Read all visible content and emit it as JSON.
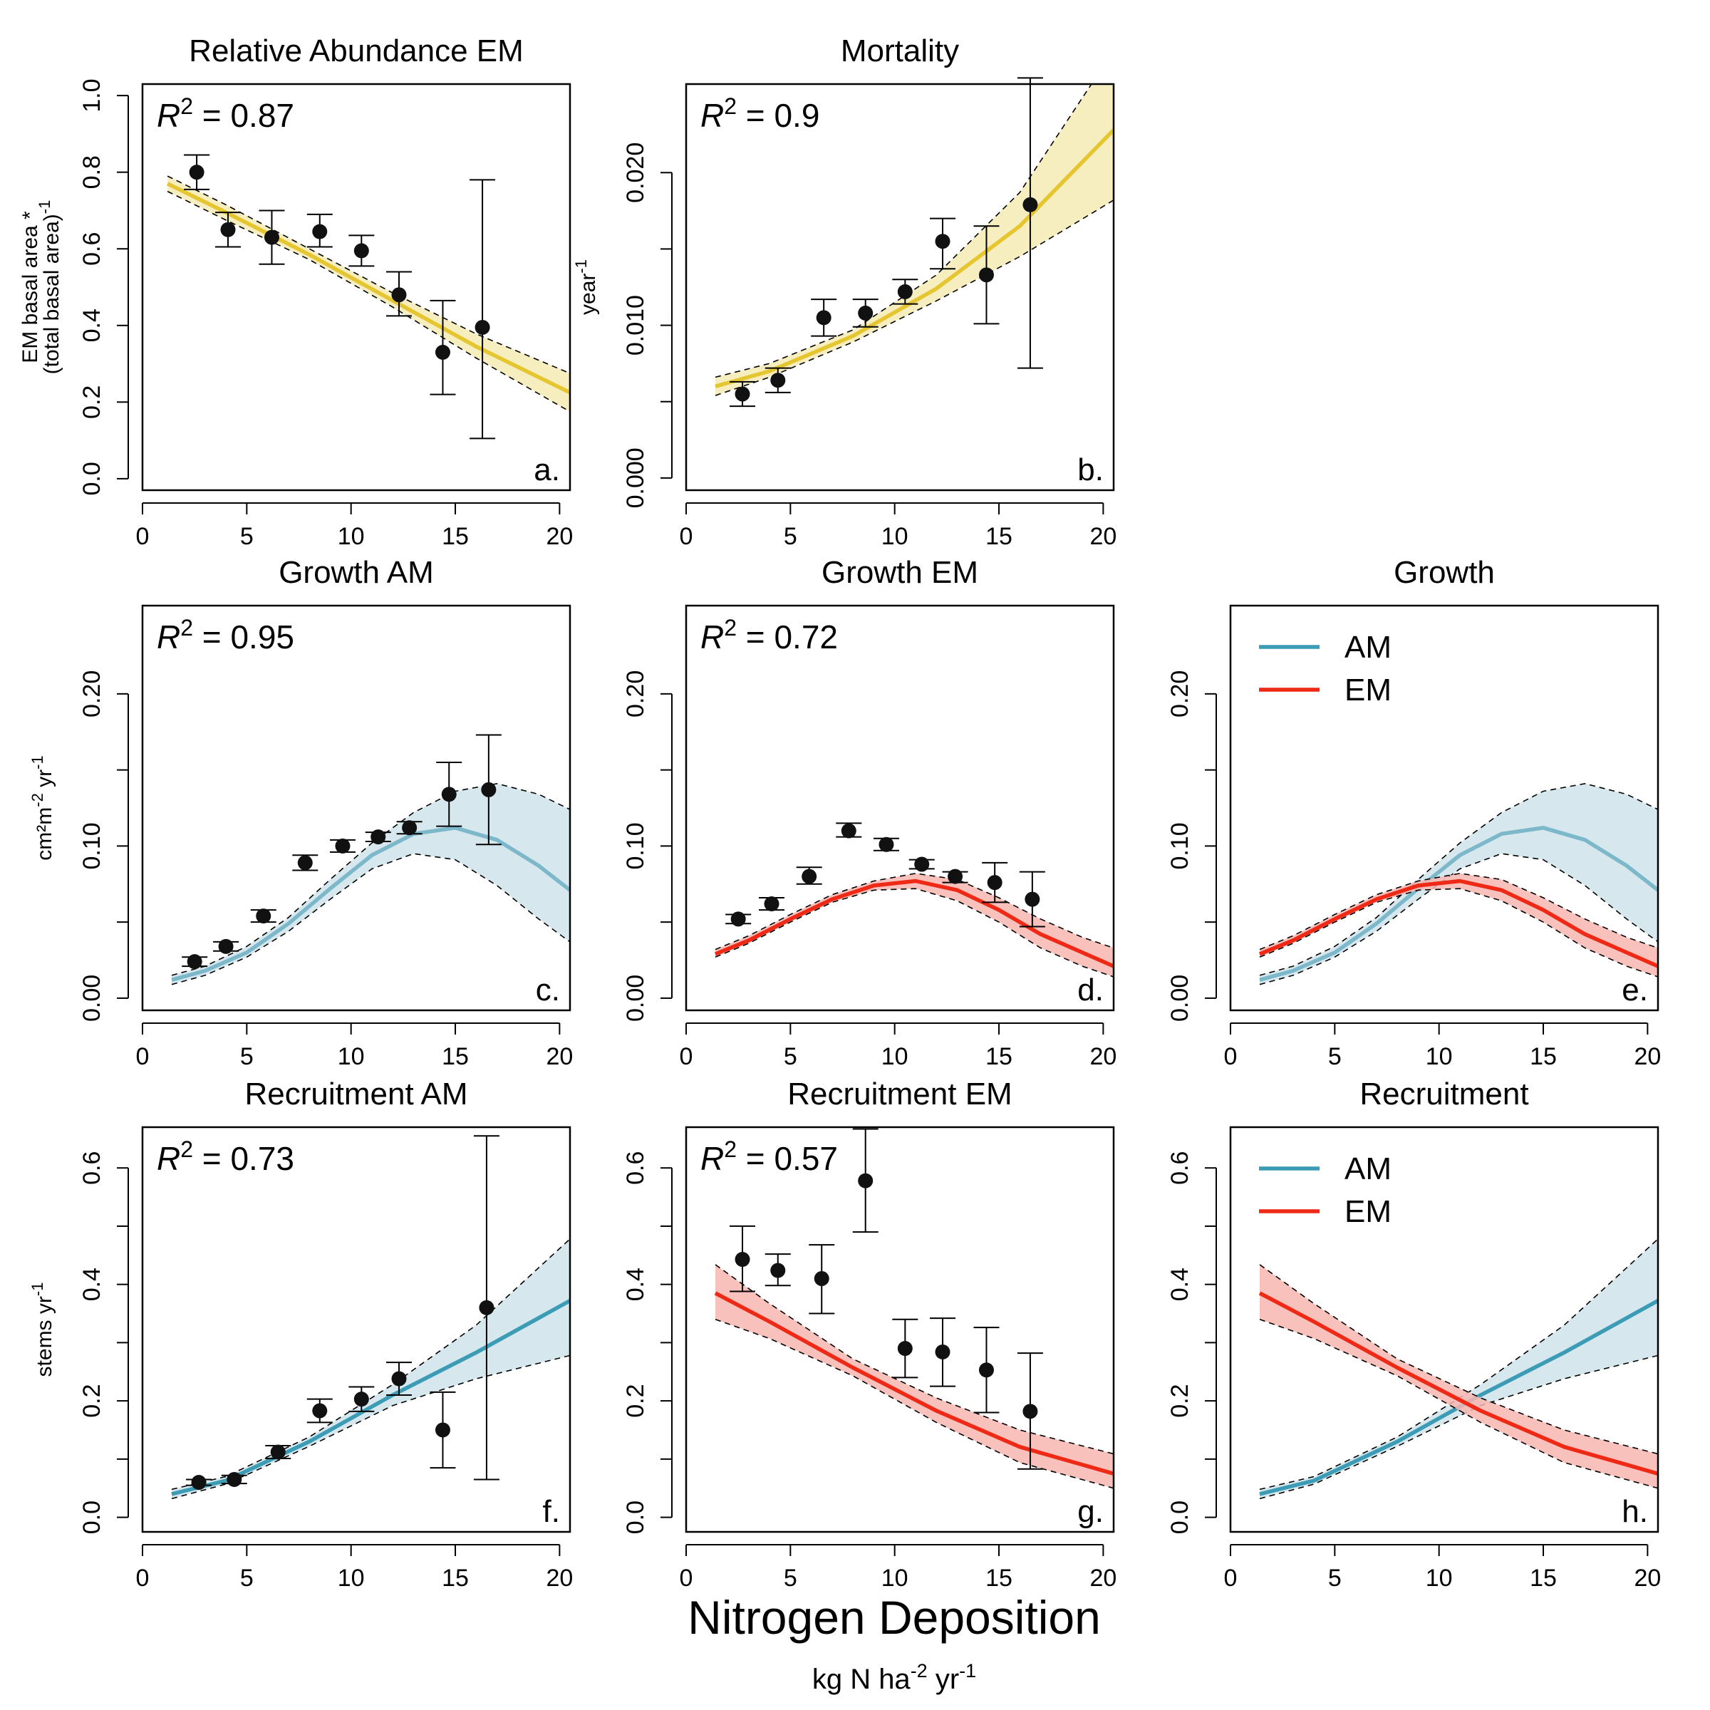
{
  "figure": {
    "xlabel": "Nitrogen Deposition",
    "xunit_pre": "kg N ha",
    "xunit_exp1": "-2",
    "xunit_mid": " yr",
    "xunit_exp2": "-1"
  },
  "colors": {
    "yellow": "#E5C630",
    "yellow_fill": "#F5EBB3",
    "blue": "#3C9BB5",
    "blue_light": "#7DB8CA",
    "blue_fill": "#CFE4EB",
    "red": "#EE2A17",
    "red_fill": "#F8B6B0"
  },
  "chart_data": [
    {
      "id": "a",
      "panel_label": "a.",
      "title": "Relative Abundance EM",
      "type": "scatter",
      "r2": "0.87",
      "ylabel": [
        "EM basal area *",
        "(total basal area)"
      ],
      "ylabel_exp": "-1",
      "xlim": [
        0,
        20.5
      ],
      "xticks": [
        "0",
        "5",
        "10",
        "15",
        "20"
      ],
      "ylim": [
        -0.03,
        1.03
      ],
      "yticks": [
        "0.0",
        "0.2",
        "0.4",
        "0.6",
        "0.8",
        "1.0"
      ],
      "points": [
        {
          "x": 2.6,
          "y": 0.8,
          "lo": 0.755,
          "hi": 0.845
        },
        {
          "x": 4.1,
          "y": 0.65,
          "lo": 0.605,
          "hi": 0.695
        },
        {
          "x": 6.2,
          "y": 0.63,
          "lo": 0.56,
          "hi": 0.7
        },
        {
          "x": 8.5,
          "y": 0.645,
          "lo": 0.605,
          "hi": 0.69
        },
        {
          "x": 10.5,
          "y": 0.595,
          "lo": 0.555,
          "hi": 0.635
        },
        {
          "x": 12.3,
          "y": 0.48,
          "lo": 0.425,
          "hi": 0.54
        },
        {
          "x": 14.4,
          "y": 0.33,
          "lo": 0.22,
          "hi": 0.465
        },
        {
          "x": 16.3,
          "y": 0.395,
          "lo": 0.105,
          "hi": 0.78
        }
      ],
      "fits": [
        {
          "name": "",
          "color": "yellow",
          "x": [
            1.2,
            4,
            8,
            12,
            16,
            20.5
          ],
          "y": [
            0.77,
            0.695,
            0.585,
            0.465,
            0.345,
            0.225
          ],
          "lo": [
            0.75,
            0.675,
            0.572,
            0.448,
            0.315,
            0.175
          ],
          "hi": [
            0.79,
            0.715,
            0.6,
            0.485,
            0.378,
            0.275
          ]
        }
      ],
      "legend": []
    },
    {
      "id": "b",
      "panel_label": "b.",
      "title": "Mortality",
      "type": "scatter",
      "r2": "0.9",
      "ylabel": [
        "year"
      ],
      "ylabel_exp": "-1",
      "xlim": [
        0,
        20.5
      ],
      "xticks": [
        "0",
        "5",
        "10",
        "15",
        "20"
      ],
      "ylim": [
        -0.0008,
        0.0258
      ],
      "yticks": [
        "0.000",
        "0.010",
        "0.020"
      ],
      "yticks_all": [
        0.0,
        0.005,
        0.01,
        0.015,
        0.02
      ],
      "points": [
        {
          "x": 2.7,
          "y": 0.0055,
          "lo": 0.0047,
          "hi": 0.0063
        },
        {
          "x": 4.4,
          "y": 0.0064,
          "lo": 0.0056,
          "hi": 0.0072
        },
        {
          "x": 6.6,
          "y": 0.0105,
          "lo": 0.0093,
          "hi": 0.0117
        },
        {
          "x": 8.6,
          "y": 0.0108,
          "lo": 0.0099,
          "hi": 0.0117
        },
        {
          "x": 10.5,
          "y": 0.0122,
          "lo": 0.0114,
          "hi": 0.013
        },
        {
          "x": 12.3,
          "y": 0.0155,
          "lo": 0.0137,
          "hi": 0.017
        },
        {
          "x": 14.4,
          "y": 0.0133,
          "lo": 0.0101,
          "hi": 0.0165
        },
        {
          "x": 16.5,
          "y": 0.0179,
          "lo": 0.0072,
          "hi": 0.0262
        }
      ],
      "fits": [
        {
          "name": "",
          "color": "yellow",
          "x": [
            1.4,
            4,
            8,
            12,
            16,
            20.5
          ],
          "y": [
            0.006,
            0.007,
            0.0093,
            0.0124,
            0.0165,
            0.0228
          ],
          "lo": [
            0.0054,
            0.0066,
            0.0089,
            0.0116,
            0.0145,
            0.0182
          ],
          "hi": [
            0.0066,
            0.0075,
            0.0097,
            0.0133,
            0.0187,
            0.028
          ]
        }
      ],
      "legend": []
    },
    {
      "id": "c",
      "panel_label": "c.",
      "title": "Growth AM",
      "type": "scatter",
      "r2": "0.95",
      "ylabel": [
        "cm²m",
        "-2",
        "yr",
        "-1"
      ],
      "ylabel_style": "growth",
      "xlim": [
        0,
        20.5
      ],
      "xticks": [
        "0",
        "5",
        "10",
        "15",
        "20"
      ],
      "ylim": [
        -0.008,
        0.258
      ],
      "yticks": [
        "0.00",
        "0.10",
        "0.20"
      ],
      "yticks_all": [
        0.0,
        0.05,
        0.1,
        0.15,
        0.2
      ],
      "points": [
        {
          "x": 2.5,
          "y": 0.024,
          "lo": 0.021,
          "hi": 0.027
        },
        {
          "x": 4.0,
          "y": 0.034,
          "lo": 0.031,
          "hi": 0.037
        },
        {
          "x": 5.8,
          "y": 0.054,
          "lo": 0.05,
          "hi": 0.058
        },
        {
          "x": 7.8,
          "y": 0.089,
          "lo": 0.084,
          "hi": 0.094
        },
        {
          "x": 9.6,
          "y": 0.1,
          "lo": 0.096,
          "hi": 0.104
        },
        {
          "x": 11.3,
          "y": 0.106,
          "lo": 0.103,
          "hi": 0.109
        },
        {
          "x": 12.8,
          "y": 0.112,
          "lo": 0.108,
          "hi": 0.116
        },
        {
          "x": 14.7,
          "y": 0.134,
          "lo": 0.113,
          "hi": 0.155
        },
        {
          "x": 16.6,
          "y": 0.137,
          "lo": 0.101,
          "hi": 0.173
        }
      ],
      "fits": [
        {
          "name": "",
          "color": "blue_light",
          "x": [
            1.4,
            3,
            5,
            7,
            9,
            11,
            13,
            15,
            17,
            19,
            20.5
          ],
          "y": [
            0.012,
            0.018,
            0.03,
            0.049,
            0.072,
            0.094,
            0.108,
            0.112,
            0.104,
            0.087,
            0.071
          ],
          "lo": [
            0.009,
            0.015,
            0.027,
            0.044,
            0.065,
            0.085,
            0.095,
            0.091,
            0.074,
            0.052,
            0.037
          ],
          "hi": [
            0.015,
            0.021,
            0.034,
            0.053,
            0.078,
            0.102,
            0.122,
            0.136,
            0.141,
            0.134,
            0.124
          ]
        }
      ],
      "legend": []
    },
    {
      "id": "d",
      "panel_label": "d.",
      "title": "Growth EM",
      "type": "scatter",
      "r2": "0.72",
      "ylabel": [],
      "ylabel_style": "none",
      "xlim": [
        0,
        20.5
      ],
      "xticks": [
        "0",
        "5",
        "10",
        "15",
        "20"
      ],
      "ylim": [
        -0.008,
        0.258
      ],
      "yticks": [
        "0.00",
        "0.10",
        "0.20"
      ],
      "yticks_all": [
        0.0,
        0.05,
        0.1,
        0.15,
        0.2
      ],
      "points": [
        {
          "x": 2.5,
          "y": 0.052,
          "lo": 0.049,
          "hi": 0.055
        },
        {
          "x": 4.1,
          "y": 0.062,
          "lo": 0.058,
          "hi": 0.066
        },
        {
          "x": 5.9,
          "y": 0.08,
          "lo": 0.075,
          "hi": 0.086
        },
        {
          "x": 7.8,
          "y": 0.11,
          "lo": 0.106,
          "hi": 0.115
        },
        {
          "x": 9.6,
          "y": 0.101,
          "lo": 0.097,
          "hi": 0.105
        },
        {
          "x": 11.3,
          "y": 0.088,
          "lo": 0.085,
          "hi": 0.091
        },
        {
          "x": 12.9,
          "y": 0.08,
          "lo": 0.076,
          "hi": 0.083
        },
        {
          "x": 14.8,
          "y": 0.076,
          "lo": 0.063,
          "hi": 0.089
        },
        {
          "x": 16.6,
          "y": 0.065,
          "lo": 0.047,
          "hi": 0.083
        }
      ],
      "fits": [
        {
          "name": "",
          "color": "red",
          "x": [
            1.4,
            3,
            5,
            7,
            9,
            11,
            13,
            15,
            17,
            19,
            20.5
          ],
          "y": [
            0.029,
            0.038,
            0.052,
            0.065,
            0.074,
            0.077,
            0.071,
            0.058,
            0.042,
            0.03,
            0.021
          ],
          "lo": [
            0.027,
            0.036,
            0.05,
            0.063,
            0.071,
            0.072,
            0.064,
            0.05,
            0.033,
            0.021,
            0.014
          ],
          "hi": [
            0.032,
            0.041,
            0.055,
            0.068,
            0.077,
            0.082,
            0.078,
            0.066,
            0.052,
            0.04,
            0.033
          ]
        }
      ],
      "legend": []
    },
    {
      "id": "e",
      "panel_label": "e.",
      "title": "Growth",
      "type": "line",
      "r2": "",
      "ylabel": [],
      "ylabel_style": "none",
      "xlim": [
        0,
        20.5
      ],
      "xticks": [
        "0",
        "5",
        "10",
        "15",
        "20"
      ],
      "ylim": [
        -0.008,
        0.258
      ],
      "yticks": [
        "0.00",
        "0.10",
        "0.20"
      ],
      "yticks_all": [
        0.0,
        0.05,
        0.1,
        0.15,
        0.2
      ],
      "points": [],
      "fits": [
        {
          "name": "AM",
          "color": "blue_light",
          "x": [
            1.4,
            3,
            5,
            7,
            9,
            11,
            13,
            15,
            17,
            19,
            20.5
          ],
          "y": [
            0.012,
            0.018,
            0.03,
            0.049,
            0.072,
            0.094,
            0.108,
            0.112,
            0.104,
            0.087,
            0.071
          ],
          "lo": [
            0.009,
            0.015,
            0.027,
            0.044,
            0.065,
            0.085,
            0.095,
            0.091,
            0.074,
            0.052,
            0.037
          ],
          "hi": [
            0.015,
            0.021,
            0.034,
            0.053,
            0.078,
            0.102,
            0.122,
            0.136,
            0.141,
            0.134,
            0.124
          ]
        },
        {
          "name": "EM",
          "color": "red",
          "x": [
            1.4,
            3,
            5,
            7,
            9,
            11,
            13,
            15,
            17,
            19,
            20.5
          ],
          "y": [
            0.029,
            0.038,
            0.052,
            0.065,
            0.074,
            0.077,
            0.071,
            0.058,
            0.042,
            0.03,
            0.021
          ],
          "lo": [
            0.027,
            0.036,
            0.05,
            0.063,
            0.071,
            0.072,
            0.064,
            0.05,
            0.033,
            0.021,
            0.014
          ],
          "hi": [
            0.032,
            0.041,
            0.055,
            0.068,
            0.077,
            0.082,
            0.078,
            0.066,
            0.052,
            0.04,
            0.033
          ]
        }
      ],
      "legend": [
        {
          "label": "AM",
          "color": "blue"
        },
        {
          "label": "EM",
          "color": "red"
        }
      ]
    },
    {
      "id": "f",
      "panel_label": "f.",
      "title": "Recruitment AM",
      "type": "scatter",
      "r2": "0.73",
      "ylabel": [
        "stems yr"
      ],
      "ylabel_exp": "-1",
      "xlim": [
        0,
        20.5
      ],
      "xticks": [
        "0",
        "5",
        "10",
        "15",
        "20"
      ],
      "ylim": [
        -0.025,
        0.67
      ],
      "yticks": [
        "0.0",
        "0.2",
        "0.4",
        "0.6"
      ],
      "yticks_all": [
        0.0,
        0.1,
        0.2,
        0.3,
        0.4,
        0.5,
        0.6
      ],
      "points": [
        {
          "x": 2.7,
          "y": 0.06,
          "lo": 0.055,
          "hi": 0.065
        },
        {
          "x": 4.4,
          "y": 0.065,
          "lo": 0.058,
          "hi": 0.072
        },
        {
          "x": 6.5,
          "y": 0.112,
          "lo": 0.101,
          "hi": 0.123
        },
        {
          "x": 8.5,
          "y": 0.183,
          "lo": 0.163,
          "hi": 0.203
        },
        {
          "x": 10.5,
          "y": 0.203,
          "lo": 0.182,
          "hi": 0.224
        },
        {
          "x": 12.3,
          "y": 0.238,
          "lo": 0.21,
          "hi": 0.266
        },
        {
          "x": 14.4,
          "y": 0.15,
          "lo": 0.085,
          "hi": 0.215
        },
        {
          "x": 16.5,
          "y": 0.36,
          "lo": 0.065,
          "hi": 0.655
        }
      ],
      "fits": [
        {
          "name": "",
          "color": "blue",
          "x": [
            1.4,
            4,
            8,
            12,
            16,
            20.5
          ],
          "y": [
            0.04,
            0.063,
            0.13,
            0.21,
            0.283,
            0.372
          ],
          "lo": [
            0.032,
            0.057,
            0.122,
            0.192,
            0.238,
            0.278
          ],
          "hi": [
            0.048,
            0.07,
            0.138,
            0.228,
            0.33,
            0.478
          ]
        }
      ],
      "legend": []
    },
    {
      "id": "g",
      "panel_label": "g.",
      "title": "Recruitment EM",
      "type": "scatter",
      "r2": "0.57",
      "ylabel": [],
      "ylabel_style": "none",
      "xlim": [
        0,
        20.5
      ],
      "xticks": [
        "0",
        "5",
        "10",
        "15",
        "20"
      ],
      "ylim": [
        -0.025,
        0.67
      ],
      "yticks": [
        "0.0",
        "0.2",
        "0.4",
        "0.6"
      ],
      "yticks_all": [
        0.0,
        0.1,
        0.2,
        0.3,
        0.4,
        0.5,
        0.6
      ],
      "points": [
        {
          "x": 2.7,
          "y": 0.443,
          "lo": 0.388,
          "hi": 0.5
        },
        {
          "x": 4.4,
          "y": 0.424,
          "lo": 0.398,
          "hi": 0.452
        },
        {
          "x": 6.5,
          "y": 0.41,
          "lo": 0.35,
          "hi": 0.468
        },
        {
          "x": 8.6,
          "y": 0.578,
          "lo": 0.49,
          "hi": 0.667
        },
        {
          "x": 10.5,
          "y": 0.29,
          "lo": 0.24,
          "hi": 0.34
        },
        {
          "x": 12.3,
          "y": 0.284,
          "lo": 0.225,
          "hi": 0.342
        },
        {
          "x": 14.4,
          "y": 0.253,
          "lo": 0.18,
          "hi": 0.326
        },
        {
          "x": 16.5,
          "y": 0.182,
          "lo": 0.083,
          "hi": 0.282
        }
      ],
      "fits": [
        {
          "name": "",
          "color": "red",
          "x": [
            1.4,
            4,
            8,
            12,
            16,
            20.5
          ],
          "y": [
            0.385,
            0.336,
            0.257,
            0.183,
            0.121,
            0.075
          ],
          "lo": [
            0.34,
            0.307,
            0.243,
            0.163,
            0.094,
            0.05
          ],
          "hi": [
            0.434,
            0.367,
            0.272,
            0.205,
            0.15,
            0.109
          ]
        }
      ],
      "legend": []
    },
    {
      "id": "h",
      "panel_label": "h.",
      "title": "Recruitment",
      "type": "line",
      "r2": "",
      "ylabel": [],
      "ylabel_style": "none",
      "xlim": [
        0,
        20.5
      ],
      "xticks": [
        "0",
        "5",
        "10",
        "15",
        "20"
      ],
      "ylim": [
        -0.025,
        0.67
      ],
      "yticks": [
        "0.0",
        "0.2",
        "0.4",
        "0.6"
      ],
      "yticks_all": [
        0.0,
        0.1,
        0.2,
        0.3,
        0.4,
        0.5,
        0.6
      ],
      "points": [],
      "fits": [
        {
          "name": "AM",
          "color": "blue",
          "x": [
            1.4,
            4,
            8,
            12,
            16,
            20.5
          ],
          "y": [
            0.04,
            0.063,
            0.13,
            0.21,
            0.283,
            0.372
          ],
          "lo": [
            0.032,
            0.057,
            0.122,
            0.192,
            0.238,
            0.278
          ],
          "hi": [
            0.048,
            0.07,
            0.138,
            0.228,
            0.33,
            0.478
          ]
        },
        {
          "name": "EM",
          "color": "red",
          "x": [
            1.4,
            4,
            8,
            12,
            16,
            20.5
          ],
          "y": [
            0.385,
            0.336,
            0.257,
            0.183,
            0.121,
            0.075
          ],
          "lo": [
            0.34,
            0.307,
            0.243,
            0.163,
            0.094,
            0.05
          ],
          "hi": [
            0.434,
            0.367,
            0.272,
            0.205,
            0.15,
            0.109
          ]
        }
      ],
      "legend": [
        {
          "label": "AM",
          "color": "blue"
        },
        {
          "label": "EM",
          "color": "red"
        }
      ]
    }
  ]
}
